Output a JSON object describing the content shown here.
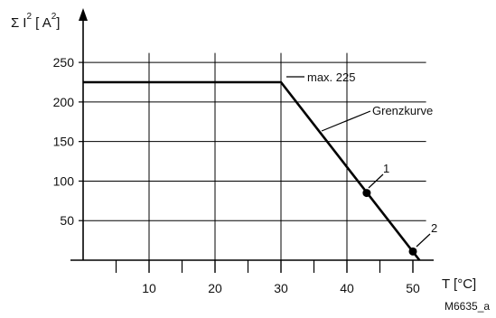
{
  "chart_data": {
    "type": "line",
    "ylabel": {
      "sigma": "Σ",
      "i": "I",
      "isup": "2",
      "open": " [ A",
      "unitsup": "2",
      "close": "]"
    },
    "xlabel": "T [°C]",
    "xlim": [
      0,
      52
    ],
    "ylim": [
      0,
      262
    ],
    "x_ticks": [
      10,
      20,
      30,
      40,
      50
    ],
    "x_minor_ticks": [
      5,
      15,
      25,
      35,
      45
    ],
    "y_ticks": [
      50,
      100,
      150,
      200,
      250
    ],
    "grid": true,
    "series": [
      {
        "name": "Grenzkurve",
        "x": [
          0,
          30,
          51
        ],
        "y": [
          225,
          225,
          0
        ]
      }
    ],
    "annotations": {
      "max_label": "max. 225",
      "curve_label": "Grenzkurve",
      "point_1": {
        "label": "1",
        "x": 43,
        "y": 85
      },
      "point_2": {
        "label": "2",
        "x": 50,
        "y": 11
      }
    },
    "figure_id": "M6635_a"
  }
}
